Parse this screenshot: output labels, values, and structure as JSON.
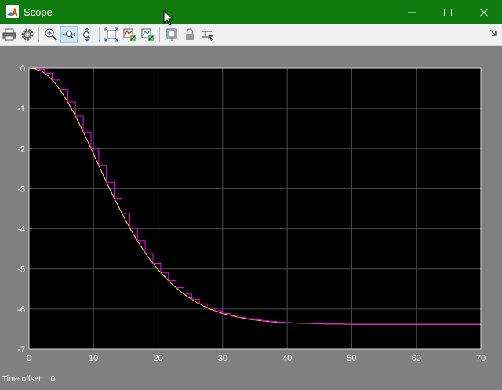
{
  "window": {
    "title": "Scope",
    "icon": "matlab-icon",
    "controls": [
      "minimize-icon",
      "maximize-icon",
      "close-icon"
    ]
  },
  "toolbar": {
    "buttons": [
      "print-icon",
      "settings-gear-icon",
      "zoom-in-icon",
      "zoom-x-icon",
      "zoom-y-icon",
      "autoscale-icon",
      "trigger-icon",
      "cursor-measurements-icon",
      "highlight-simulink-block-icon",
      "lock-icon",
      "signal-selector-icon"
    ],
    "active_button": "zoom-x-icon",
    "dock_icon": "undock-arrow-icon"
  },
  "status": {
    "label": "Time offset:",
    "value": "0"
  },
  "colors": {
    "title_bar": "#107c10",
    "plot_background": "#000000",
    "figure_background": "#808080",
    "series_1": "#ffff00",
    "series_2": "#ff00ff"
  },
  "chart_data": {
    "type": "line",
    "title": "",
    "xlabel": "",
    "ylabel": "",
    "xlim": [
      0,
      70
    ],
    "ylim": [
      -7,
      0
    ],
    "xticks": [
      "0",
      "10",
      "20",
      "30",
      "40",
      "50",
      "60",
      "70"
    ],
    "yticks": [
      "0",
      "-1",
      "-2",
      "-3",
      "-4",
      "-5",
      "-6",
      "-7"
    ],
    "grid": true,
    "legend": "none",
    "series": [
      {
        "color": "#ffff00",
        "style": "continuous",
        "x": [
          0,
          1,
          2,
          3,
          4,
          5,
          6,
          7,
          8,
          9,
          10,
          11,
          12,
          13,
          14,
          15,
          16,
          17,
          18,
          19,
          20,
          22,
          24,
          26,
          28,
          30,
          32,
          34,
          36,
          38,
          40,
          42,
          44,
          46,
          48,
          50,
          52,
          55,
          58,
          61,
          64,
          67,
          70
        ],
        "y": [
          0,
          -0.02,
          -0.08,
          -0.19,
          -0.36,
          -0.58,
          -0.84,
          -1.13,
          -1.45,
          -1.79,
          -2.14,
          -2.49,
          -2.84,
          -3.17,
          -3.49,
          -3.8,
          -4.09,
          -4.35,
          -4.6,
          -4.82,
          -5.02,
          -5.36,
          -5.63,
          -5.84,
          -6.0,
          -6.11,
          -6.19,
          -6.25,
          -6.29,
          -6.32,
          -6.34,
          -6.35,
          -6.36,
          -6.37,
          -6.37,
          -6.38,
          -6.38,
          -6.38,
          -6.38,
          -6.38,
          -6.38,
          -6.38,
          -6.38
        ]
      },
      {
        "color": "#ff00ff",
        "style": "stairs",
        "x": [
          0,
          1,
          2,
          3,
          4,
          5,
          6,
          7,
          8,
          9,
          10,
          11,
          12,
          13,
          14,
          15,
          16,
          17,
          18,
          19,
          20,
          22,
          24,
          26,
          28,
          30,
          32,
          34,
          36,
          38,
          40,
          42,
          44,
          46,
          48,
          50,
          52,
          55,
          58,
          61,
          64,
          67,
          70
        ],
        "y": [
          0,
          -0.02,
          -0.08,
          -0.19,
          -0.36,
          -0.58,
          -0.84,
          -1.13,
          -1.45,
          -1.79,
          -2.14,
          -2.49,
          -2.84,
          -3.17,
          -3.49,
          -3.8,
          -4.09,
          -4.35,
          -4.6,
          -4.82,
          -5.02,
          -5.36,
          -5.63,
          -5.84,
          -6.0,
          -6.11,
          -6.19,
          -6.25,
          -6.29,
          -6.32,
          -6.34,
          -6.35,
          -6.36,
          -6.37,
          -6.37,
          -6.38,
          -6.38,
          -6.38,
          -6.38,
          -6.38,
          -6.38,
          -6.38,
          -6.38
        ]
      }
    ]
  }
}
